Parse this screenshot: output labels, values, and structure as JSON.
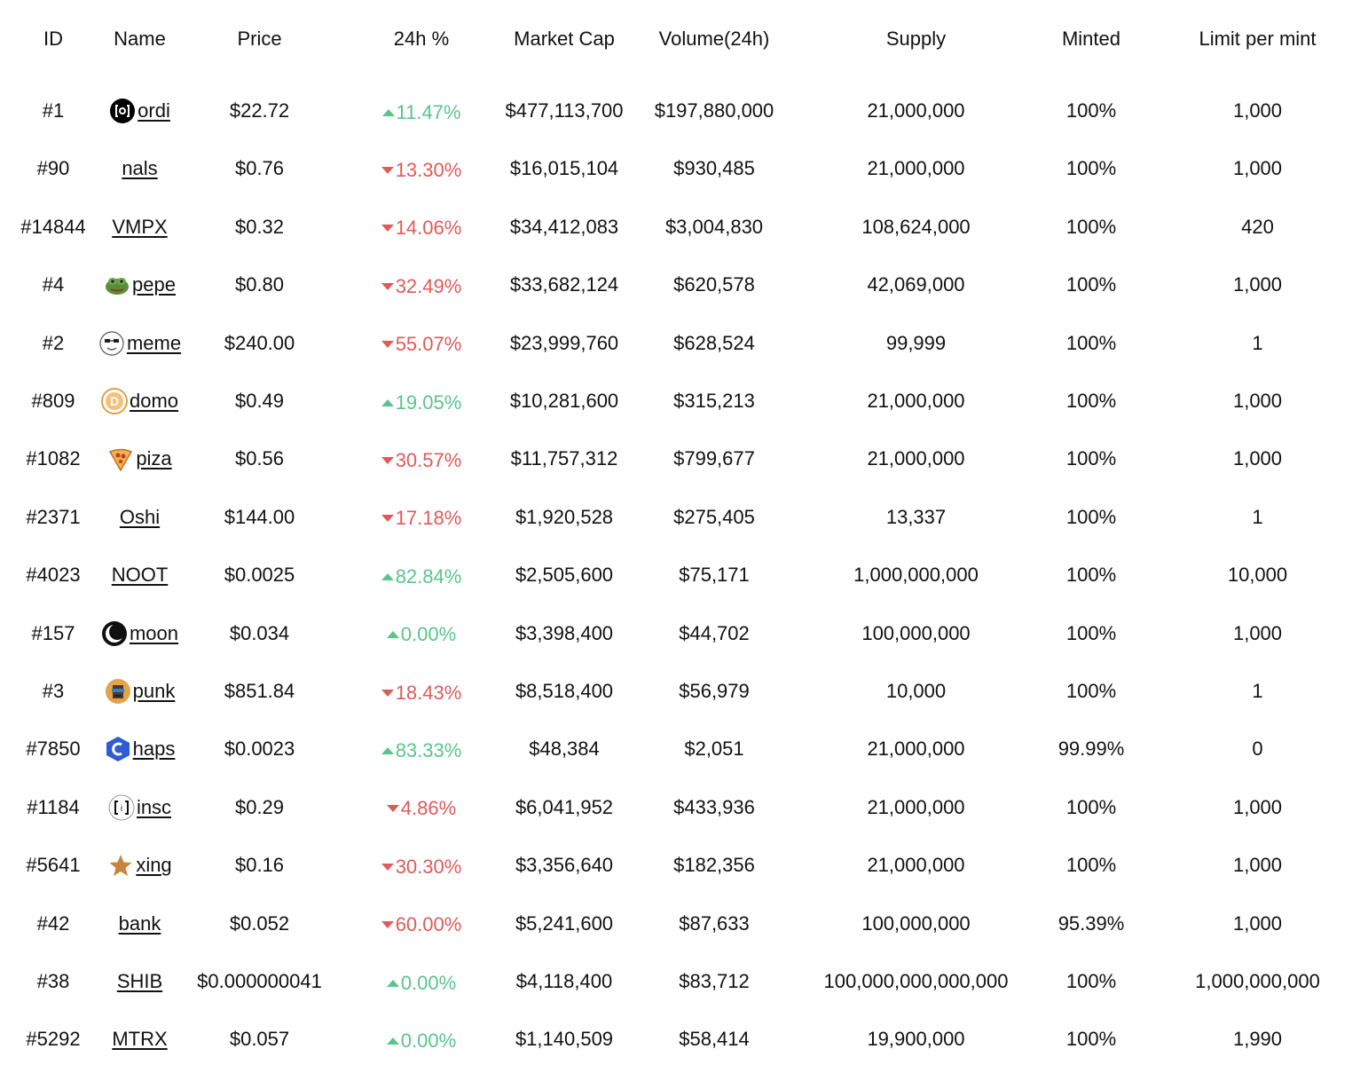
{
  "colors": {
    "up": "#5ac48c",
    "down": "#e05a5a",
    "text": "#111111"
  },
  "columns": [
    "ID",
    "Name",
    "Price",
    "24h %",
    "Market Cap",
    "Volume(24h)",
    "Supply",
    "Minted",
    "Limit per mint"
  ],
  "rows": [
    {
      "id": "#1",
      "name": "ordi",
      "icon": "ordi-icon",
      "price": "$22.72",
      "change": "11.47%",
      "direction": "up",
      "market_cap": "$477,113,700",
      "volume": "$197,880,000",
      "supply": "21,000,000",
      "minted": "100%",
      "limit": "1,000"
    },
    {
      "id": "#90",
      "name": "nals",
      "icon": "",
      "price": "$0.76",
      "change": "13.30%",
      "direction": "down",
      "market_cap": "$16,015,104",
      "volume": "$930,485",
      "supply": "21,000,000",
      "minted": "100%",
      "limit": "1,000"
    },
    {
      "id": "#14844",
      "name": "VMPX",
      "icon": "",
      "price": "$0.32",
      "change": "14.06%",
      "direction": "down",
      "market_cap": "$34,412,083",
      "volume": "$3,004,830",
      "supply": "108,624,000",
      "minted": "100%",
      "limit": "420"
    },
    {
      "id": "#4",
      "name": "pepe",
      "icon": "pepe-frog-icon",
      "price": "$0.80",
      "change": "32.49%",
      "direction": "down",
      "market_cap": "$33,682,124",
      "volume": "$620,578",
      "supply": "42,069,000",
      "minted": "100%",
      "limit": "1,000"
    },
    {
      "id": "#2",
      "name": "meme",
      "icon": "meme-face-icon",
      "price": "$240.00",
      "change": "55.07%",
      "direction": "down",
      "market_cap": "$23,999,760",
      "volume": "$628,524",
      "supply": "99,999",
      "minted": "100%",
      "limit": "1"
    },
    {
      "id": "#809",
      "name": "domo",
      "icon": "domo-coin-icon",
      "price": "$0.49",
      "change": "19.05%",
      "direction": "up",
      "market_cap": "$10,281,600",
      "volume": "$315,213",
      "supply": "21,000,000",
      "minted": "100%",
      "limit": "1,000"
    },
    {
      "id": "#1082",
      "name": "piza",
      "icon": "pizza-icon",
      "price": "$0.56",
      "change": "30.57%",
      "direction": "down",
      "market_cap": "$11,757,312",
      "volume": "$799,677",
      "supply": "21,000,000",
      "minted": "100%",
      "limit": "1,000"
    },
    {
      "id": "#2371",
      "name": "Oshi",
      "icon": "",
      "price": "$144.00",
      "change": "17.18%",
      "direction": "down",
      "market_cap": "$1,920,528",
      "volume": "$275,405",
      "supply": "13,337",
      "minted": "100%",
      "limit": "1"
    },
    {
      "id": "#4023",
      "name": "NOOT",
      "icon": "",
      "price": "$0.0025",
      "change": "82.84%",
      "direction": "up",
      "market_cap": "$2,505,600",
      "volume": "$75,171",
      "supply": "1,000,000,000",
      "minted": "100%",
      "limit": "10,000"
    },
    {
      "id": "#157",
      "name": "moon",
      "icon": "moon-icon",
      "price": "$0.034",
      "change": "0.00%",
      "direction": "up",
      "market_cap": "$3,398,400",
      "volume": "$44,702",
      "supply": "100,000,000",
      "minted": "100%",
      "limit": "1,000"
    },
    {
      "id": "#3",
      "name": "punk",
      "icon": "punk-avatar-icon",
      "price": "$851.84",
      "change": "18.43%",
      "direction": "down",
      "market_cap": "$8,518,400",
      "volume": "$56,979",
      "supply": "10,000",
      "minted": "100%",
      "limit": "1"
    },
    {
      "id": "#7850",
      "name": "haps",
      "icon": "haps-hexagon-icon",
      "price": "$0.0023",
      "change": "83.33%",
      "direction": "up",
      "market_cap": "$48,384",
      "volume": "$2,051",
      "supply": "21,000,000",
      "minted": "99.99%",
      "limit": "0"
    },
    {
      "id": "#1184",
      "name": "insc",
      "icon": "insc-brackets-icon",
      "price": "$0.29",
      "change": "4.86%",
      "direction": "down",
      "market_cap": "$6,041,952",
      "volume": "$433,936",
      "supply": "21,000,000",
      "minted": "100%",
      "limit": "1,000"
    },
    {
      "id": "#5641",
      "name": "xing",
      "icon": "star-icon",
      "price": "$0.16",
      "change": "30.30%",
      "direction": "down",
      "market_cap": "$3,356,640",
      "volume": "$182,356",
      "supply": "21,000,000",
      "minted": "100%",
      "limit": "1,000"
    },
    {
      "id": "#42",
      "name": "bank",
      "icon": "",
      "price": "$0.052",
      "change": "60.00%",
      "direction": "down",
      "market_cap": "$5,241,600",
      "volume": "$87,633",
      "supply": "100,000,000",
      "minted": "95.39%",
      "limit": "1,000"
    },
    {
      "id": "#38",
      "name": "SHIB",
      "icon": "",
      "price": "$0.000000041",
      "change": "0.00%",
      "direction": "up",
      "market_cap": "$4,118,400",
      "volume": "$83,712",
      "supply": "100,000,000,000,000",
      "minted": "100%",
      "limit": "1,000,000,000"
    },
    {
      "id": "#5292",
      "name": "MTRX",
      "icon": "",
      "price": "$0.057",
      "change": "0.00%",
      "direction": "up",
      "market_cap": "$1,140,509",
      "volume": "$58,414",
      "supply": "19,900,000",
      "minted": "100%",
      "limit": "1,990"
    }
  ]
}
